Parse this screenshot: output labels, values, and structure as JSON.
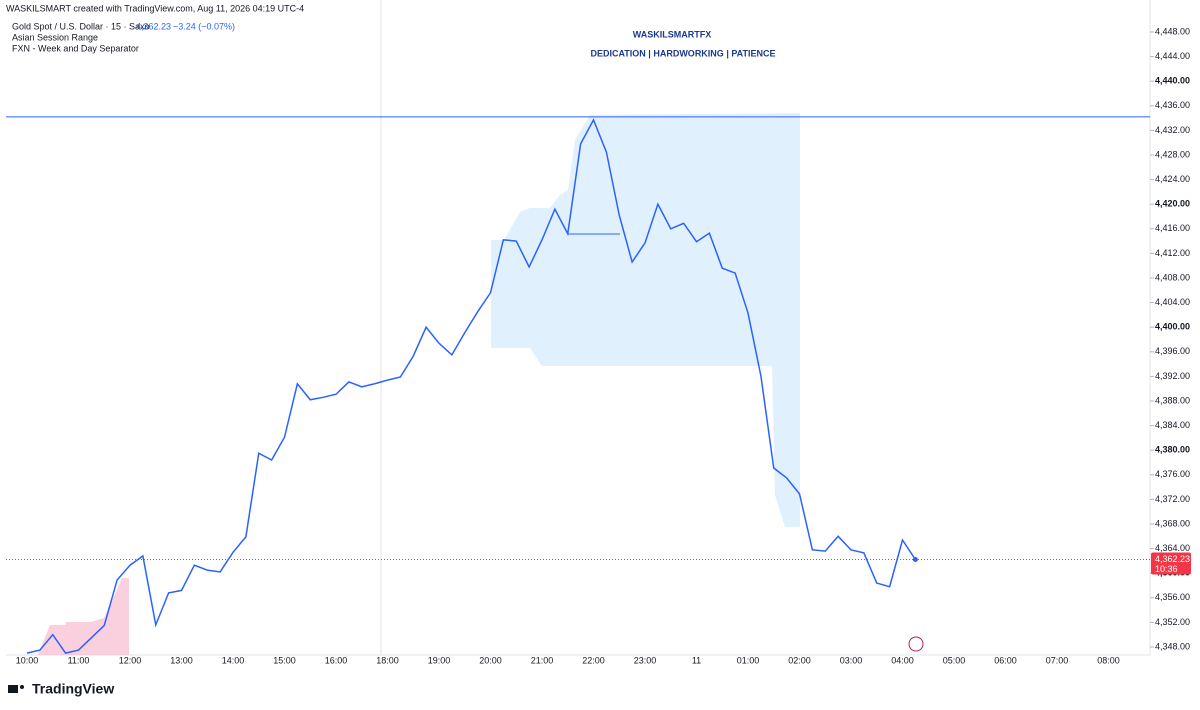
{
  "header": {
    "credit": "WASKILSMART created with TradingView.com, Aug 11, 2026 04:19 UTC-4",
    "symbol": "Gold Spot / U.S. Dollar · 15 · Saxo",
    "price": "4,362.23",
    "change": "−3.24 (−0.07%)",
    "indicators": [
      "Asian Session Range",
      "FXN - Week and Day Separator"
    ],
    "watermark": "WASKILSMARTFX",
    "tagline": "DEDICATION | HARDWORKING | PATIENCE"
  },
  "chart_data": {
    "type": "line",
    "grid": false,
    "categories": [
      "10:00",
      null,
      null,
      null,
      "11:00",
      null,
      null,
      null,
      "12:00",
      null,
      null,
      null,
      "13:00",
      null,
      null,
      null,
      "14:00",
      null,
      null,
      null,
      "15:00",
      null,
      null,
      null,
      "16:00",
      null,
      null,
      null,
      "18:00",
      null,
      null,
      null,
      "19:00",
      null,
      null,
      null,
      "20:00",
      null,
      null,
      null,
      "21:00",
      null,
      null,
      null,
      "22:00",
      null,
      null,
      null,
      "23:00",
      null,
      null,
      null,
      "11",
      null,
      null,
      null,
      "01:00",
      null,
      null,
      null,
      "02:00",
      null,
      null,
      null,
      "03:00",
      null,
      null,
      null,
      "04:00",
      null,
      null,
      null,
      "05:00",
      null,
      null,
      null,
      "06:00",
      null,
      null,
      null,
      "07:00",
      null,
      null,
      null,
      "08:00",
      null,
      null,
      null
    ],
    "series": [
      {
        "name": "Gold Spot / U.S. Dollar",
        "color": "#2962ff",
        "values": [
          4347,
          4347.5,
          4350,
          4347,
          4347.5,
          4349.5,
          4351.5,
          4358.9,
          4361.3,
          4362.8,
          4351.6,
          4356.8,
          4357.2,
          4361.3,
          4360.5,
          4360.2,
          4363.4,
          4365.9,
          4379.5,
          4378.4,
          4382.1,
          4390.8,
          4388.2,
          4388.6,
          4389.1,
          4391.1,
          4390.3,
          4390.8,
          4391.4,
          4391.9,
          4395.3,
          4400,
          4397.4,
          4395.5,
          4399.1,
          4402.5,
          4405.6,
          4414.2,
          4414,
          4409.8,
          4414.2,
          4419.2,
          4415.2,
          4429.8,
          4433.7,
          4428.5,
          4418.2,
          4410.6,
          4413.7,
          4420,
          4416,
          4416.9,
          4413.9,
          4415.3,
          4409.6,
          4408.8,
          4402.3,
          4392.1,
          4377.1,
          4375.5,
          4372.9,
          4363.8,
          4363.6,
          4366,
          4363.8,
          4363.3,
          4358.4,
          4357.8,
          4365.4,
          4362.23,
          null,
          null,
          null,
          null,
          null,
          null,
          null,
          null,
          null,
          null,
          null,
          null,
          null,
          null,
          null,
          null,
          null,
          null
        ]
      }
    ],
    "ylim": [
      4346.7,
      4453.2
    ],
    "yticks": [
      {
        "value": 4348,
        "label": "4,348.00"
      },
      {
        "value": 4352,
        "label": "4,352.00"
      },
      {
        "value": 4356,
        "label": "4,356.00"
      },
      {
        "value": 4360,
        "label": "4,360.00"
      },
      {
        "value": 4364,
        "label": "4,364.00"
      },
      {
        "value": 4368,
        "label": "4,368.00"
      },
      {
        "value": 4372,
        "label": "4,372.00"
      },
      {
        "value": 4376,
        "label": "4,376.00"
      },
      {
        "value": 4380,
        "label": "4,380.00"
      },
      {
        "value": 4384,
        "label": "4,384.00"
      },
      {
        "value": 4388,
        "label": "4,388.00"
      },
      {
        "value": 4392,
        "label": "4,392.00"
      },
      {
        "value": 4396,
        "label": "4,396.00"
      },
      {
        "value": 4400,
        "label": "4,400.00"
      },
      {
        "value": 4404,
        "label": "4,404.00"
      },
      {
        "value": 4408,
        "label": "4,408.00"
      },
      {
        "value": 4412,
        "label": "4,412.00"
      },
      {
        "value": 4416,
        "label": "4,416.00"
      },
      {
        "value": 4420,
        "label": "4,420.00"
      },
      {
        "value": 4424,
        "label": "4,424.00"
      },
      {
        "value": 4428,
        "label": "4,428.00"
      },
      {
        "value": 4432,
        "label": "4,432.00"
      },
      {
        "value": 4436,
        "label": "4,436.00"
      },
      {
        "value": 4440,
        "label": "4,440.00"
      },
      {
        "value": 4444,
        "label": "4,444.00"
      },
      {
        "value": 4448,
        "label": "4,448.00"
      }
    ],
    "hline": {
      "value": 4434.2,
      "color": "#2962ff"
    },
    "last_price": 4362.23,
    "last_price_label": "4,362.23",
    "countdown": "10:36",
    "price_color": "#f23645"
  },
  "footer": {
    "logo": "TradingView"
  }
}
